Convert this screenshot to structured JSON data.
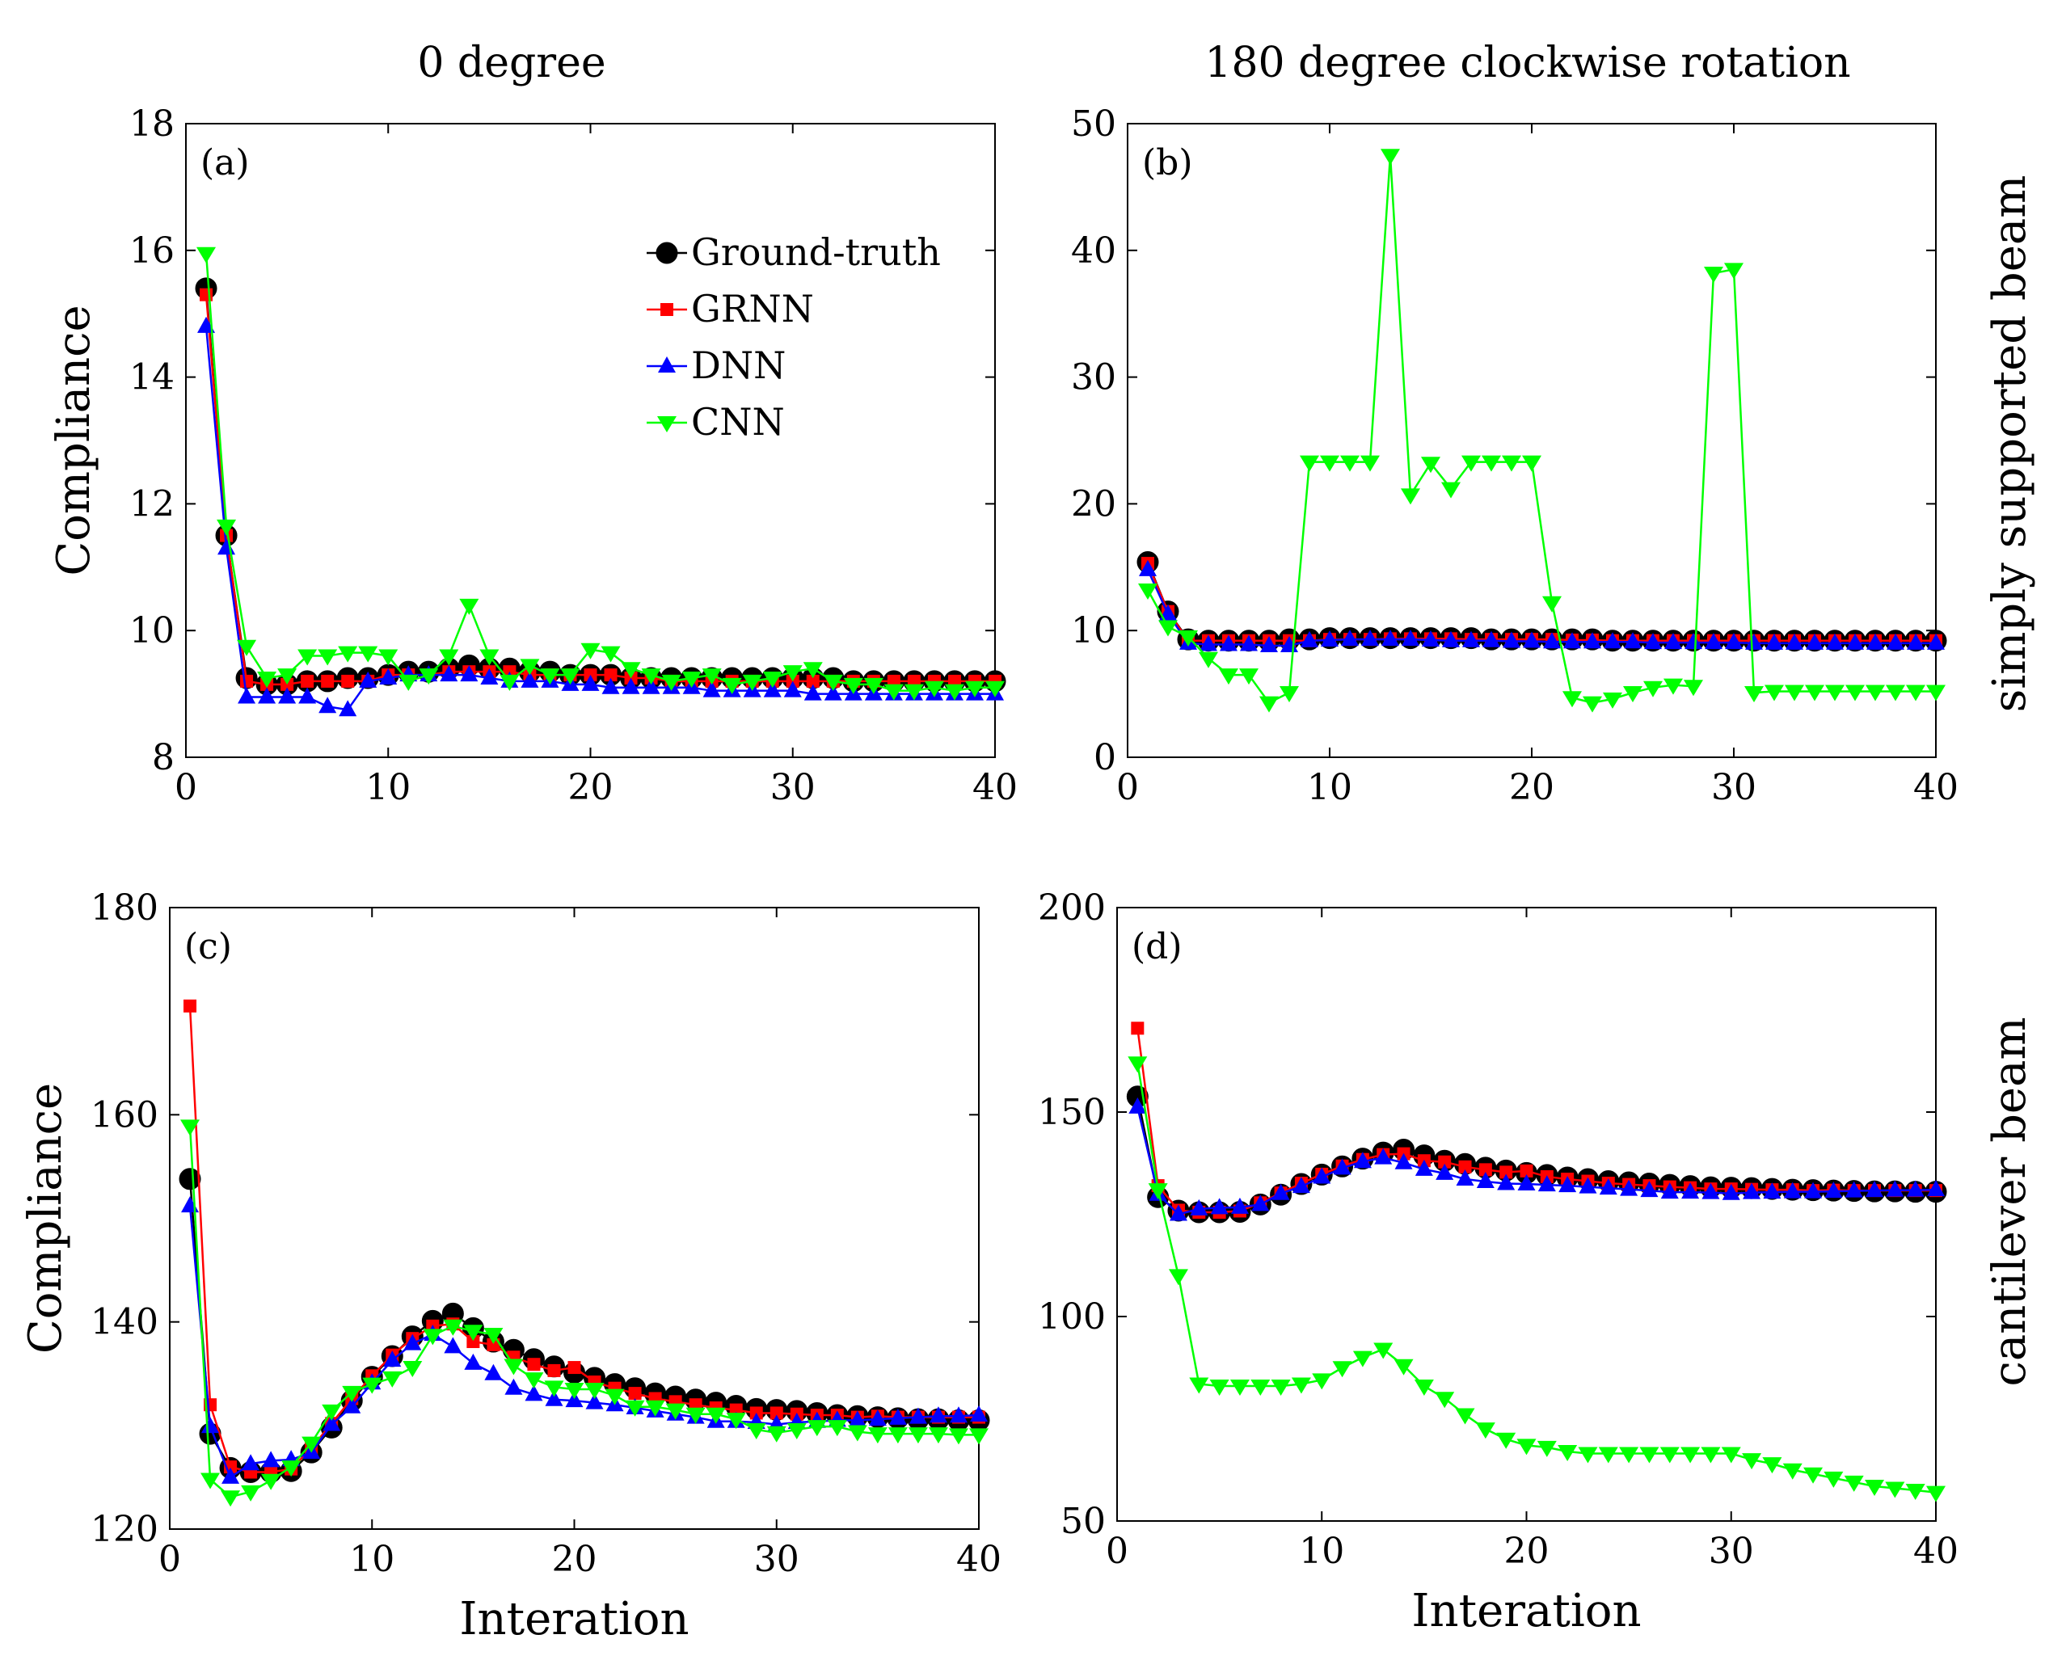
{
  "column_titles": [
    "0 degree",
    "180 degree clockwise rotation"
  ],
  "row_titles": [
    "simply supported beam",
    "cantilever beam"
  ],
  "legend": {
    "entries": [
      "Ground-truth",
      "GRNN",
      "DNN",
      "CNN"
    ]
  },
  "series_styles": {
    "Ground-truth": {
      "color": "#000000",
      "marker": "circle"
    },
    "GRNN": {
      "color": "#ff0000",
      "marker": "square"
    },
    "DNN": {
      "color": "#0000ff",
      "marker": "triangle-up"
    },
    "CNN": {
      "color": "#00ff00",
      "marker": "triangle-down"
    }
  },
  "chart_data": [
    {
      "type": "line",
      "panel": "(a)",
      "title": "0 degree",
      "xlabel": "",
      "ylabel": "Compliance",
      "xlim": [
        0,
        40
      ],
      "ylim": [
        8,
        18
      ],
      "xticks": [
        0,
        10,
        20,
        30,
        40
      ],
      "yticks": [
        8,
        10,
        12,
        14,
        16,
        18
      ],
      "x": [
        1,
        2,
        3,
        4,
        5,
        6,
        7,
        8,
        9,
        10,
        11,
        12,
        13,
        14,
        15,
        16,
        17,
        18,
        19,
        20,
        21,
        22,
        23,
        24,
        25,
        26,
        27,
        28,
        29,
        30,
        31,
        32,
        33,
        34,
        35,
        36,
        37,
        38,
        39,
        40
      ],
      "series": [
        {
          "name": "Ground-truth",
          "values": [
            15.4,
            11.5,
            9.25,
            9.15,
            9.15,
            9.2,
            9.2,
            9.25,
            9.25,
            9.3,
            9.35,
            9.35,
            9.4,
            9.45,
            9.4,
            9.4,
            9.35,
            9.35,
            9.3,
            9.3,
            9.3,
            9.25,
            9.25,
            9.25,
            9.25,
            9.25,
            9.25,
            9.25,
            9.25,
            9.25,
            9.25,
            9.25,
            9.2,
            9.2,
            9.2,
            9.2,
            9.2,
            9.2,
            9.2,
            9.2
          ]
        },
        {
          "name": "GRNN",
          "values": [
            15.3,
            11.5,
            9.2,
            9.15,
            9.15,
            9.2,
            9.2,
            9.2,
            9.2,
            9.3,
            9.3,
            9.3,
            9.35,
            9.35,
            9.35,
            9.35,
            9.3,
            9.3,
            9.3,
            9.3,
            9.3,
            9.25,
            9.25,
            9.2,
            9.2,
            9.2,
            9.2,
            9.2,
            9.2,
            9.2,
            9.2,
            9.2,
            9.2,
            9.2,
            9.2,
            9.2,
            9.2,
            9.2,
            9.2,
            9.2
          ]
        },
        {
          "name": "DNN",
          "values": [
            14.8,
            11.3,
            8.95,
            8.95,
            8.95,
            8.95,
            8.8,
            8.75,
            9.2,
            9.25,
            9.3,
            9.3,
            9.3,
            9.3,
            9.25,
            9.2,
            9.2,
            9.2,
            9.15,
            9.15,
            9.1,
            9.1,
            9.1,
            9.1,
            9.1,
            9.05,
            9.05,
            9.05,
            9.05,
            9.05,
            9.0,
            9.0,
            9.0,
            9.0,
            9.0,
            9.0,
            9.0,
            9.0,
            9.0,
            9.0
          ]
        },
        {
          "name": "CNN",
          "values": [
            15.95,
            11.65,
            9.75,
            9.25,
            9.3,
            9.6,
            9.6,
            9.65,
            9.65,
            9.6,
            9.2,
            9.3,
            9.6,
            10.4,
            9.6,
            9.2,
            9.45,
            9.3,
            9.3,
            9.7,
            9.65,
            9.4,
            9.3,
            9.2,
            9.25,
            9.3,
            9.15,
            9.2,
            9.25,
            9.35,
            9.4,
            9.2,
            9.15,
            9.15,
            9.05,
            9.05,
            9.1,
            9.05,
            9.1,
            9.1
          ]
        }
      ]
    },
    {
      "type": "line",
      "panel": "(b)",
      "title": "180 degree clockwise rotation",
      "xlabel": "",
      "ylabel": "",
      "xlim": [
        0,
        40
      ],
      "ylim": [
        0,
        50
      ],
      "xticks": [
        0,
        10,
        20,
        30,
        40
      ],
      "yticks": [
        0,
        10,
        20,
        30,
        40,
        50
      ],
      "x": [
        1,
        2,
        3,
        4,
        5,
        6,
        7,
        8,
        9,
        10,
        11,
        12,
        13,
        14,
        15,
        16,
        17,
        18,
        19,
        20,
        21,
        22,
        23,
        24,
        25,
        26,
        27,
        28,
        29,
        30,
        31,
        32,
        33,
        34,
        35,
        36,
        37,
        38,
        39,
        40
      ],
      "series": [
        {
          "name": "Ground-truth",
          "values": [
            15.4,
            11.5,
            9.3,
            9.2,
            9.2,
            9.2,
            9.2,
            9.3,
            9.3,
            9.4,
            9.4,
            9.4,
            9.4,
            9.4,
            9.4,
            9.4,
            9.4,
            9.3,
            9.3,
            9.3,
            9.3,
            9.3,
            9.3,
            9.2,
            9.2,
            9.2,
            9.2,
            9.2,
            9.2,
            9.2,
            9.2,
            9.2,
            9.2,
            9.2,
            9.2,
            9.2,
            9.2,
            9.2,
            9.2,
            9.2
          ]
        },
        {
          "name": "GRNN",
          "values": [
            15.3,
            11.5,
            9.2,
            9.2,
            9.2,
            9.2,
            9.2,
            9.2,
            9.2,
            9.3,
            9.3,
            9.3,
            9.35,
            9.35,
            9.35,
            9.35,
            9.3,
            9.3,
            9.3,
            9.3,
            9.3,
            9.25,
            9.25,
            9.2,
            9.2,
            9.2,
            9.2,
            9.2,
            9.2,
            9.2,
            9.2,
            9.2,
            9.2,
            9.2,
            9.2,
            9.2,
            9.2,
            9.2,
            9.2,
            9.2
          ]
        },
        {
          "name": "DNN",
          "values": [
            14.8,
            11.3,
            9.0,
            8.9,
            8.9,
            8.9,
            8.8,
            8.8,
            9.2,
            9.25,
            9.3,
            9.3,
            9.3,
            9.3,
            9.25,
            9.2,
            9.2,
            9.2,
            9.15,
            9.15,
            9.1,
            9.1,
            9.1,
            9.1,
            9.1,
            9.05,
            9.05,
            9.05,
            9.05,
            9.05,
            9.0,
            9.0,
            9.0,
            9.0,
            9.0,
            9.0,
            9.0,
            9.0,
            9.0,
            9.0
          ]
        },
        {
          "name": "CNN",
          "values": [
            13.2,
            10.3,
            9.5,
            7.8,
            6.5,
            6.5,
            4.3,
            5.1,
            23.3,
            23.3,
            23.3,
            23.3,
            47.5,
            20.7,
            23.2,
            21.2,
            23.3,
            23.3,
            23.3,
            23.3,
            12.2,
            4.7,
            4.3,
            4.6,
            5.1,
            5.5,
            5.7,
            5.6,
            38.2,
            38.5,
            5.1,
            5.2,
            5.2,
            5.2,
            5.2,
            5.2,
            5.2,
            5.2,
            5.2,
            5.2
          ]
        }
      ]
    },
    {
      "type": "line",
      "panel": "(c)",
      "title": "",
      "xlabel": "Interation",
      "ylabel": "Compliance",
      "xlim": [
        0,
        40
      ],
      "ylim": [
        120,
        180
      ],
      "xticks": [
        0,
        10,
        20,
        30,
        40
      ],
      "yticks": [
        120,
        140,
        160,
        180
      ],
      "x": [
        1,
        2,
        3,
        4,
        5,
        6,
        7,
        8,
        9,
        10,
        11,
        12,
        13,
        14,
        15,
        16,
        17,
        18,
        19,
        20,
        21,
        22,
        23,
        24,
        25,
        26,
        27,
        28,
        29,
        30,
        31,
        32,
        33,
        34,
        35,
        36,
        37,
        38,
        39,
        40
      ],
      "series": [
        {
          "name": "Ground-truth",
          "values": [
            153.8,
            129.2,
            125.9,
            125.5,
            125.5,
            125.6,
            127.4,
            129.8,
            132.4,
            134.7,
            136.7,
            138.6,
            140.1,
            140.8,
            139.4,
            138.1,
            137.3,
            136.4,
            135.7,
            135.1,
            134.6,
            134.0,
            133.6,
            133.1,
            132.8,
            132.5,
            132.2,
            131.9,
            131.6,
            131.5,
            131.4,
            131.2,
            131.0,
            130.9,
            130.8,
            130.7,
            130.6,
            130.6,
            130.5,
            130.5
          ]
        },
        {
          "name": "GRNN",
          "values": [
            170.5,
            132.0,
            126.0,
            125.5,
            125.5,
            125.8,
            127.8,
            130.2,
            132.6,
            134.8,
            136.8,
            138.4,
            139.6,
            139.8,
            138.1,
            137.8,
            136.6,
            135.9,
            135.3,
            135.6,
            134.2,
            133.6,
            133.1,
            132.6,
            132.3,
            132.0,
            131.7,
            131.5,
            131.2,
            131.2,
            131.1,
            131.0,
            131.0,
            130.8,
            130.9,
            130.8,
            130.8,
            130.8,
            130.8,
            130.8
          ]
        },
        {
          "name": "DNN",
          "values": [
            151.2,
            129.9,
            125.0,
            126.3,
            126.6,
            126.7,
            127.4,
            130.1,
            131.8,
            134.1,
            136.3,
            137.9,
            138.8,
            137.6,
            136.0,
            135.0,
            133.6,
            133.0,
            132.5,
            132.4,
            132.2,
            132.0,
            131.7,
            131.4,
            131.1,
            130.8,
            130.4,
            130.4,
            130.3,
            130.1,
            130.3,
            130.4,
            130.5,
            130.5,
            130.6,
            130.7,
            130.8,
            130.9,
            130.9,
            131.0
          ]
        },
        {
          "name": "CNN",
          "values": [
            158.9,
            124.8,
            123.1,
            123.6,
            124.7,
            126.0,
            128.3,
            131.4,
            133.2,
            134.0,
            134.6,
            135.6,
            138.7,
            139.6,
            139.1,
            138.8,
            135.8,
            134.5,
            133.7,
            133.5,
            133.5,
            132.9,
            131.8,
            131.8,
            131.5,
            131.1,
            131.1,
            130.6,
            129.6,
            129.3,
            129.6,
            129.9,
            129.9,
            129.4,
            129.2,
            129.2,
            129.2,
            129.2,
            129.1,
            129.1
          ]
        }
      ]
    },
    {
      "type": "line",
      "panel": "(d)",
      "title": "",
      "xlabel": "Interation",
      "ylabel": "",
      "xlim": [
        0,
        40
      ],
      "ylim": [
        50,
        200
      ],
      "xticks": [
        0,
        10,
        20,
        30,
        40
      ],
      "yticks": [
        50,
        100,
        150,
        200
      ],
      "x": [
        1,
        2,
        3,
        4,
        5,
        6,
        7,
        8,
        9,
        10,
        11,
        12,
        13,
        14,
        15,
        16,
        17,
        18,
        19,
        20,
        21,
        22,
        23,
        24,
        25,
        26,
        27,
        28,
        29,
        30,
        31,
        32,
        33,
        34,
        35,
        36,
        37,
        38,
        39,
        40
      ],
      "series": [
        {
          "name": "Ground-truth",
          "values": [
            153.8,
            129.2,
            125.9,
            125.5,
            125.5,
            125.6,
            127.4,
            129.8,
            132.4,
            134.7,
            136.7,
            138.6,
            140.1,
            140.8,
            139.4,
            138.1,
            137.3,
            136.4,
            135.7,
            135.1,
            134.6,
            134.0,
            133.6,
            133.1,
            132.8,
            132.5,
            132.2,
            131.9,
            131.6,
            131.5,
            131.4,
            131.2,
            131.0,
            130.9,
            130.8,
            130.7,
            130.6,
            130.6,
            130.5,
            130.5
          ]
        },
        {
          "name": "GRNN",
          "values": [
            170.5,
            132.0,
            126.0,
            125.5,
            125.5,
            125.8,
            127.8,
            130.2,
            132.6,
            134.8,
            136.8,
            138.4,
            139.6,
            139.8,
            138.1,
            137.8,
            136.6,
            135.9,
            135.3,
            135.6,
            134.2,
            133.6,
            133.1,
            132.6,
            132.3,
            132.0,
            131.7,
            131.5,
            131.2,
            131.2,
            131.1,
            131.0,
            131.0,
            130.8,
            130.9,
            130.8,
            130.8,
            130.8,
            130.8,
            130.8
          ]
        },
        {
          "name": "DNN",
          "values": [
            151.2,
            129.9,
            125.0,
            126.3,
            126.6,
            126.7,
            127.4,
            130.1,
            131.8,
            134.1,
            136.3,
            137.9,
            138.8,
            137.6,
            136.0,
            135.0,
            133.6,
            133.0,
            132.5,
            132.4,
            132.2,
            132.0,
            131.7,
            131.4,
            131.1,
            130.8,
            130.4,
            130.4,
            130.3,
            130.1,
            130.3,
            130.4,
            130.5,
            130.5,
            130.6,
            130.7,
            130.8,
            130.9,
            130.9,
            131.0
          ]
        },
        {
          "name": "CNN",
          "values": [
            162.0,
            131.0,
            110.0,
            83.5,
            83.0,
            83.0,
            83.0,
            83.0,
            83.5,
            84.5,
            87.5,
            90.0,
            92.0,
            88.0,
            83.0,
            80.0,
            76.0,
            72.5,
            70.0,
            68.5,
            68.0,
            67.0,
            66.5,
            66.5,
            66.5,
            66.5,
            66.5,
            66.5,
            66.5,
            66.5,
            65.0,
            64.0,
            62.5,
            61.5,
            60.5,
            59.5,
            58.5,
            58.0,
            57.5,
            57.0
          ]
        }
      ]
    }
  ]
}
